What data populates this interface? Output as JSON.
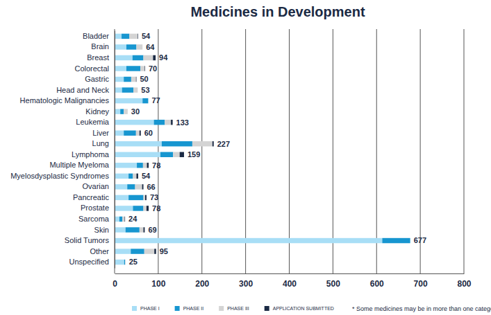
{
  "chart_data": {
    "type": "bar",
    "title": "Medicines in Development",
    "orientation": "horizontal",
    "stacked": true,
    "grid": true,
    "legend": "bottom",
    "categories": [
      "Bladder",
      "Brain",
      "Breast",
      "Colorectal",
      "Gastric",
      "Head and Neck",
      "Hematologic Malignancies",
      "Kidney",
      "Leukemia",
      "Liver",
      "Lung",
      "Lymphoma",
      "Multiple Myeloma",
      "Myelosdysplastic Syndromes",
      "Ovarian",
      "Pancreatic",
      "Prostate",
      "Sarcoma",
      "Skin",
      "Solid Tumors",
      "Other",
      "Unspecified"
    ],
    "series": [
      {
        "name": "PHASE I",
        "color": "#a8def6",
        "values": [
          16,
          27,
          41,
          27,
          21,
          17,
          64,
          13,
          90,
          21,
          108,
          105,
          51,
          32,
          29,
          32,
          42,
          11,
          25,
          613,
          37,
          22
        ]
      },
      {
        "name": "PHASE II",
        "color": "#1796d0",
        "values": [
          18,
          23,
          25,
          32,
          17,
          26,
          13,
          8,
          25,
          28,
          70,
          29,
          14,
          10,
          18,
          34,
          24,
          7,
          32,
          64,
          31,
          2
        ]
      },
      {
        "name": "PHASE III",
        "color": "#d4d4d4",
        "values": [
          19,
          14,
          22,
          10,
          11,
          10,
          0,
          9,
          14,
          8,
          46,
          15,
          9,
          8,
          16,
          4,
          7,
          5,
          9,
          0,
          23,
          1
        ]
      },
      {
        "name": "APPLICATION SUBMITTED",
        "color": "#1b2a44",
        "values": [
          1,
          0,
          6,
          1,
          1,
          0,
          0,
          0,
          4,
          3,
          3,
          10,
          4,
          4,
          3,
          3,
          5,
          1,
          3,
          0,
          4,
          0
        ]
      }
    ],
    "totals": [
      54,
      64,
      94,
      70,
      50,
      53,
      77,
      30,
      133,
      60,
      227,
      159,
      78,
      54,
      66,
      73,
      78,
      24,
      69,
      677,
      95,
      25
    ],
    "xlim": [
      0,
      800
    ],
    "xticks": [
      0,
      100,
      200,
      300,
      400,
      500,
      600,
      700,
      800
    ],
    "note": "* Some medicines may be in more than one category."
  }
}
